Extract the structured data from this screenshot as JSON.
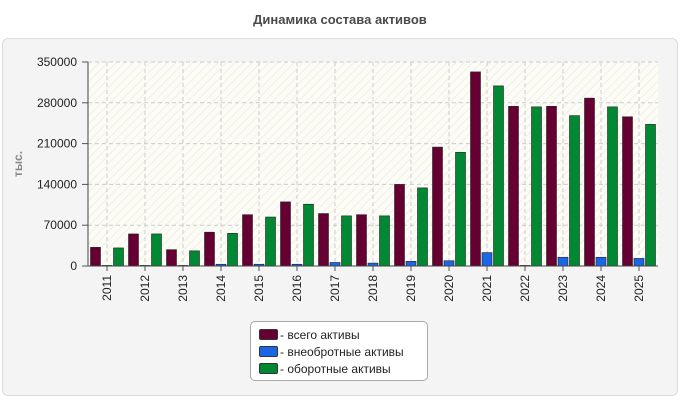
{
  "title": "Динамика состава активов",
  "colors": {
    "total": "#660033",
    "noncurrent": "#1a66e6",
    "current": "#008833"
  },
  "chart_data": {
    "type": "bar",
    "title": "Динамика состава активов",
    "ylabel": "тыс.",
    "xlabel": "",
    "ylim": [
      0,
      350000
    ],
    "yticks": [
      "0",
      "70000",
      "140000",
      "210000",
      "280000",
      "350000"
    ],
    "categories": [
      "2011",
      "2012",
      "2013",
      "2014",
      "2015",
      "2016",
      "2017",
      "2018",
      "2019",
      "2020",
      "2021",
      "2022",
      "2023",
      "2024",
      "2025"
    ],
    "series": [
      {
        "name": "- всего активы",
        "key": "total",
        "values": [
          32000,
          55000,
          28000,
          58000,
          88000,
          110000,
          90000,
          88000,
          140000,
          204000,
          333000,
          274000,
          274000,
          288000,
          256000
        ]
      },
      {
        "name": "- внеобротные активы",
        "key": "noncurrent",
        "values": [
          1000,
          1000,
          1000,
          3000,
          3000,
          3000,
          6000,
          5000,
          8000,
          9000,
          23000,
          1000,
          15000,
          15000,
          13000
        ]
      },
      {
        "name": "- оборотные активы",
        "key": "current",
        "values": [
          31000,
          55000,
          26000,
          56000,
          84000,
          106000,
          86000,
          86000,
          134000,
          195000,
          309000,
          273000,
          258000,
          273000,
          243000
        ]
      }
    ],
    "grid": true,
    "legend": "bottom"
  }
}
